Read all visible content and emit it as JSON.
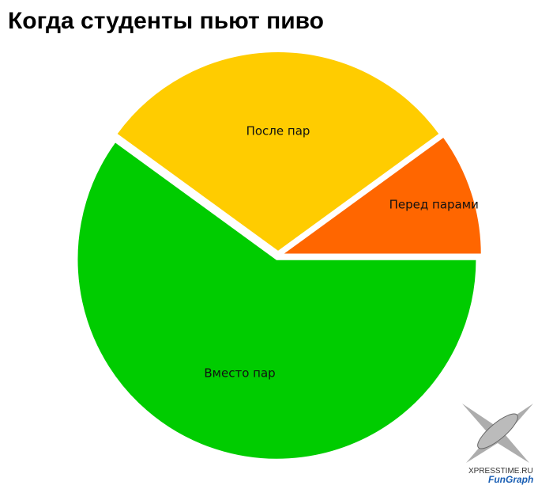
{
  "chart_data": {
    "type": "pie",
    "title": "Когда студенты пьют пиво",
    "categories": [
      "Перед парами",
      "После пар",
      "Вместо пар"
    ],
    "values": [
      10,
      30,
      60
    ],
    "colors": [
      "#ff6600",
      "#ffcc00",
      "#00cc00"
    ]
  },
  "watermark": {
    "site": "XPRESSTIME.RU",
    "brand": "FunGraph"
  }
}
